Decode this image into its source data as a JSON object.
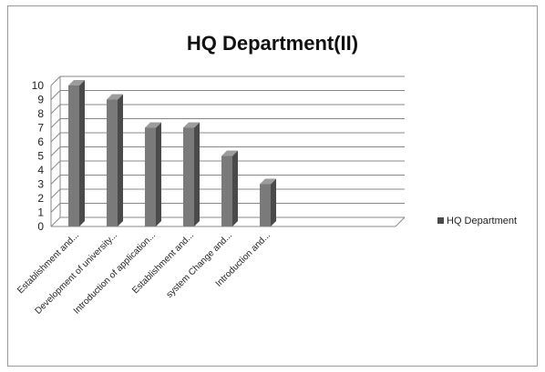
{
  "chart_data": {
    "type": "bar",
    "title": "HQ Department(II)",
    "categories": [
      "Establishment and...",
      "Development of university...",
      "Introduction of application...",
      "Establishment and...",
      "system Change and...",
      "Introduction and..."
    ],
    "series": [
      {
        "name": "HQ Department",
        "values": [
          10,
          9,
          7,
          7,
          5,
          3
        ]
      }
    ],
    "ylim": [
      0,
      10
    ],
    "yticks": [
      0,
      1,
      2,
      3,
      4,
      5,
      6,
      7,
      8,
      9,
      10
    ],
    "grid": true,
    "legend_position": "right",
    "colors": {
      "bar_front": "#7a7a7a",
      "bar_side": "#4a4a4a",
      "bar_top": "#9c9c9c",
      "grid": "#888888",
      "axis": "#888888"
    }
  }
}
